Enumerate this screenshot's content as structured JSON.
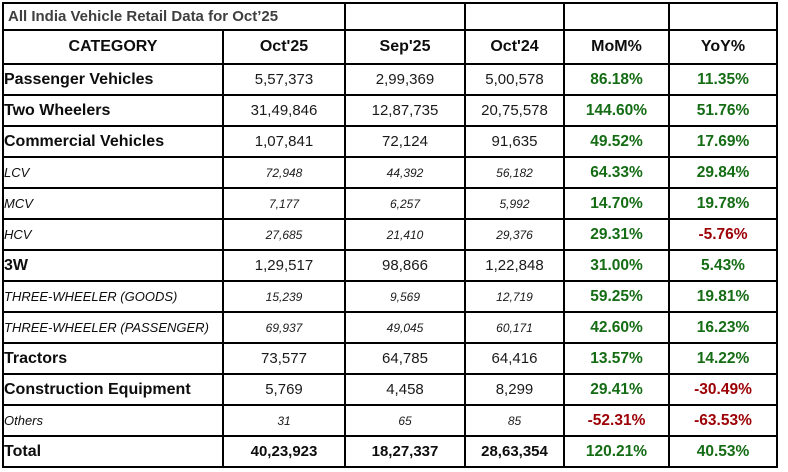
{
  "colors": {
    "positive": "#146C14",
    "negative": "#9C0006",
    "title_text": "#3F3F3F",
    "border": "#000000",
    "background": "#FFFFFF"
  },
  "chart_data": {
    "type": "table",
    "title": "All India Vehicle Retail Data for Oct’25",
    "columns": [
      "CATEGORY",
      "Oct'25",
      "Sep'25",
      "Oct'24",
      "MoM%",
      "YoY%"
    ],
    "rows": [
      {
        "category": "Passenger Vehicles",
        "style": "major",
        "values": [
          "5,57,373",
          "2,99,369",
          "5,00,578"
        ],
        "mom": "86.18%",
        "yoy": "11.35%"
      },
      {
        "category": "Two Wheelers",
        "style": "major",
        "values": [
          "31,49,846",
          "12,87,735",
          "20,75,578"
        ],
        "mom": "144.60%",
        "yoy": "51.76%"
      },
      {
        "category": "Commercial Vehicles",
        "style": "major",
        "values": [
          "1,07,841",
          "72,124",
          "91,635"
        ],
        "mom": "49.52%",
        "yoy": "17.69%"
      },
      {
        "category": "LCV",
        "style": "sub",
        "values": [
          "72,948",
          "44,392",
          "56,182"
        ],
        "mom": "64.33%",
        "yoy": "29.84%"
      },
      {
        "category": "MCV",
        "style": "sub",
        "values": [
          "7,177",
          "6,257",
          "5,992"
        ],
        "mom": "14.70%",
        "yoy": "19.78%"
      },
      {
        "category": "HCV",
        "style": "sub",
        "values": [
          "27,685",
          "21,410",
          "29,376"
        ],
        "mom": "29.31%",
        "yoy": "-5.76%"
      },
      {
        "category": "3W",
        "style": "major",
        "values": [
          "1,29,517",
          "98,866",
          "1,22,848"
        ],
        "mom": "31.00%",
        "yoy": "5.43%"
      },
      {
        "category": "THREE-WHEELER (GOODS)",
        "style": "sub",
        "values": [
          "15,239",
          "9,569",
          "12,719"
        ],
        "mom": "59.25%",
        "yoy": "19.81%"
      },
      {
        "category": "THREE-WHEELER (PASSENGER)",
        "style": "sub",
        "values": [
          "69,937",
          "49,045",
          "60,171"
        ],
        "mom": "42.60%",
        "yoy": "16.23%"
      },
      {
        "category": "Tractors",
        "style": "major",
        "values": [
          "73,577",
          "64,785",
          "64,416"
        ],
        "mom": "13.57%",
        "yoy": "14.22%"
      },
      {
        "category": "Construction Equipment",
        "style": "major",
        "values": [
          "5,769",
          "4,458",
          "8,299"
        ],
        "mom": "29.41%",
        "yoy": "-30.49%"
      },
      {
        "category": "Others",
        "style": "sub",
        "values": [
          "31",
          "65",
          "85"
        ],
        "mom": "-52.31%",
        "yoy": "-63.53%"
      },
      {
        "category": "Total",
        "style": "total",
        "values": [
          "40,23,923",
          "18,27,337",
          "28,63,354"
        ],
        "mom": "120.21%",
        "yoy": "40.53%"
      }
    ]
  }
}
